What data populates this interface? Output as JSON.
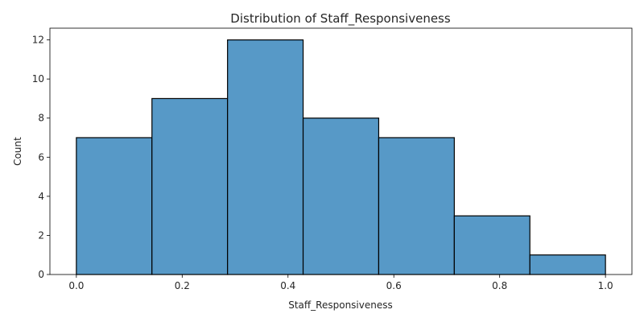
{
  "chart_data": {
    "type": "bar",
    "title": "Distribution of Staff_Responsiveness",
    "xlabel": "Staff_Responsiveness",
    "ylabel": "Count",
    "bin_edges": [
      0.0,
      0.142857,
      0.285714,
      0.428571,
      0.571429,
      0.714286,
      0.857143,
      1.0
    ],
    "values": [
      7,
      9,
      12,
      8,
      7,
      3,
      1
    ],
    "xlim": [
      -0.05,
      1.05
    ],
    "ylim": [
      0,
      12.6
    ],
    "x_ticks": [
      0.0,
      0.2,
      0.4,
      0.6,
      0.8,
      1.0
    ],
    "x_tick_labels": [
      "0.0",
      "0.2",
      "0.4",
      "0.6",
      "0.8",
      "1.0"
    ],
    "y_ticks": [
      0,
      2,
      4,
      6,
      8,
      10,
      12
    ],
    "y_tick_labels": [
      "0",
      "2",
      "4",
      "6",
      "8",
      "10",
      "12"
    ],
    "grid": false,
    "bar_color": "#5799c7",
    "edge_color": "#000000"
  }
}
